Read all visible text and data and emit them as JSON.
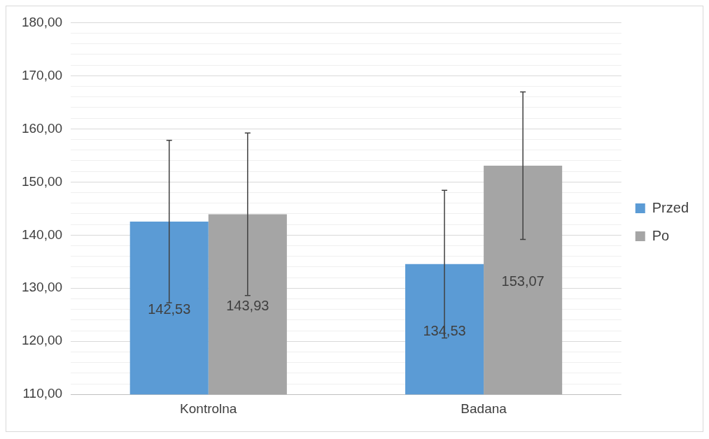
{
  "chart_data": {
    "type": "bar",
    "categories": [
      "Kontrolna",
      "Badana"
    ],
    "series": [
      {
        "name": "Przed",
        "color": "#5b9bd5",
        "values": [
          142.53,
          134.53
        ],
        "errors": [
          15.3,
          13.9
        ],
        "value_labels": [
          "142,53",
          "134,53"
        ]
      },
      {
        "name": "Po",
        "color": "#a5a5a5",
        "values": [
          143.93,
          153.07
        ],
        "errors": [
          15.3,
          13.9
        ],
        "value_labels": [
          "143,93",
          "153,07"
        ]
      }
    ],
    "ylim": [
      110,
      180
    ],
    "yticks": [
      {
        "value": 110,
        "label": "110,00"
      },
      {
        "value": 112,
        "label": null
      },
      {
        "value": 114,
        "label": null
      },
      {
        "value": 116,
        "label": null
      },
      {
        "value": 118,
        "label": null
      },
      {
        "value": 120,
        "label": "120,00"
      },
      {
        "value": 122,
        "label": null
      },
      {
        "value": 124,
        "label": null
      },
      {
        "value": 126,
        "label": null
      },
      {
        "value": 128,
        "label": null
      },
      {
        "value": 130,
        "label": "130,00"
      },
      {
        "value": 132,
        "label": null
      },
      {
        "value": 134,
        "label": null
      },
      {
        "value": 136,
        "label": null
      },
      {
        "value": 138,
        "label": null
      },
      {
        "value": 140,
        "label": "140,00"
      },
      {
        "value": 142,
        "label": null
      },
      {
        "value": 144,
        "label": null
      },
      {
        "value": 146,
        "label": null
      },
      {
        "value": 148,
        "label": null
      },
      {
        "value": 150,
        "label": "150,00"
      },
      {
        "value": 152,
        "label": null
      },
      {
        "value": 154,
        "label": null
      },
      {
        "value": 156,
        "label": null
      },
      {
        "value": 158,
        "label": null
      },
      {
        "value": 160,
        "label": "160,00"
      },
      {
        "value": 162,
        "label": null
      },
      {
        "value": 164,
        "label": null
      },
      {
        "value": 166,
        "label": null
      },
      {
        "value": 168,
        "label": null
      },
      {
        "value": 170,
        "label": "170,00"
      },
      {
        "value": 172,
        "label": null
      },
      {
        "value": 174,
        "label": null
      },
      {
        "value": 176,
        "label": null
      },
      {
        "value": 178,
        "label": null
      },
      {
        "value": 180,
        "label": "180,00"
      }
    ],
    "grid": "y",
    "legend": "right"
  }
}
